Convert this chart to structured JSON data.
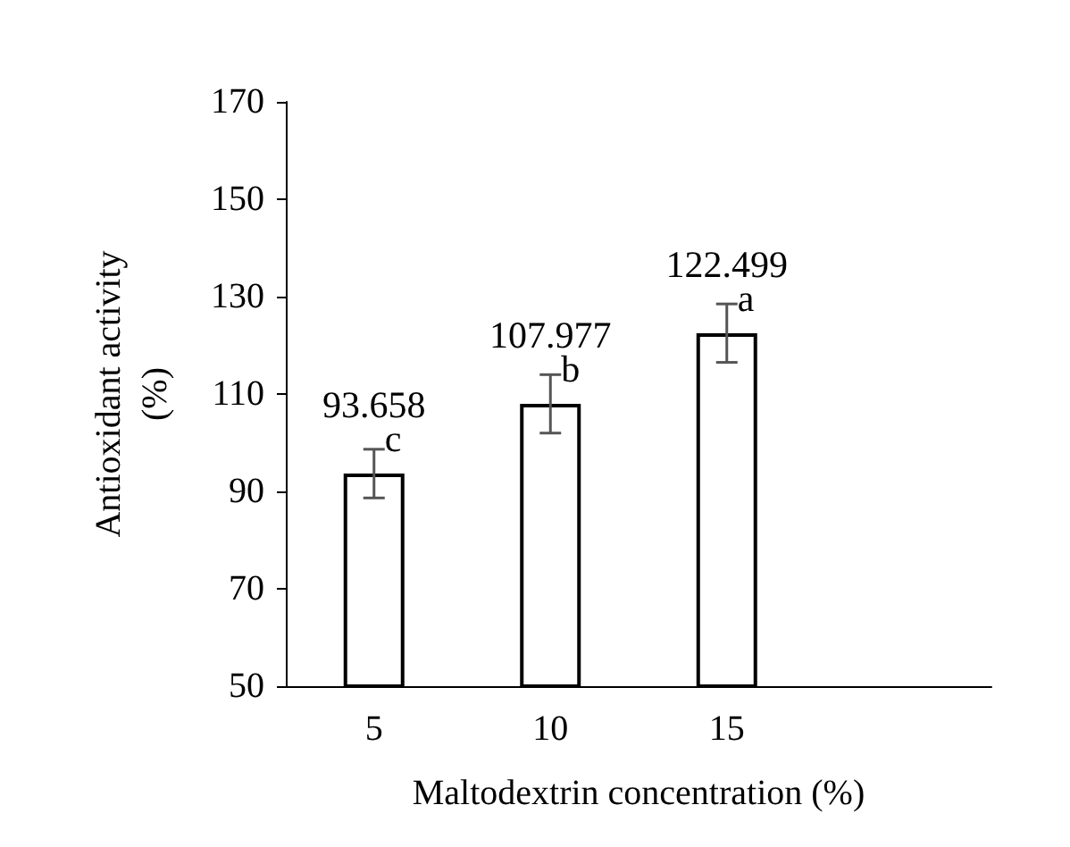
{
  "chart_data": {
    "type": "bar",
    "xlabel": "Maltodextrin concentration (%)",
    "ylabel": "Antioxidant activity\n(%)",
    "categories": [
      "5",
      "10",
      "15",
      null
    ],
    "values": [
      93.658,
      107.977,
      122.499,
      null
    ],
    "errors": [
      5,
      6,
      6,
      null
    ],
    "value_labels": [
      "93.658",
      "107.977",
      "122.499",
      null
    ],
    "color": "#ffffff",
    "annotations": [
      {
        "text": "c",
        "x": "5",
        "y": 93.658
      },
      {
        "text": "b",
        "x": "10",
        "y": 107.977
      },
      {
        "text": "a",
        "x": "15",
        "y": 122.499
      }
    ],
    "ylim": [
      50,
      170
    ],
    "yticks": [
      50,
      70,
      90,
      110,
      130,
      150,
      170
    ],
    "grid": false
  }
}
